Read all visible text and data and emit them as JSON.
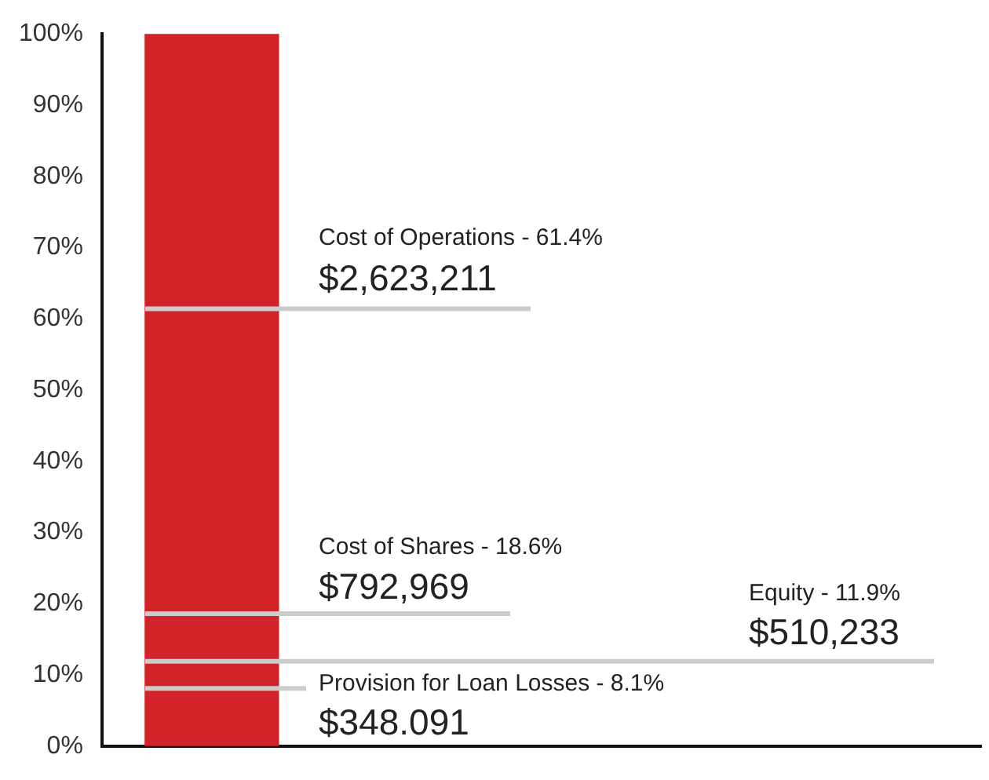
{
  "chart_data": {
    "type": "bar",
    "categories": [
      null
    ],
    "values": [
      100
    ],
    "color": "#d2232a",
    "ylim": [
      0,
      100
    ],
    "yticks": [
      {
        "value": 0,
        "label": "0%"
      },
      {
        "value": 10,
        "label": "10%"
      },
      {
        "value": 20,
        "label": "20%"
      },
      {
        "value": 30,
        "label": "30%"
      },
      {
        "value": 40,
        "label": "40%"
      },
      {
        "value": 50,
        "label": "50%"
      },
      {
        "value": 60,
        "label": "60%"
      },
      {
        "value": 70,
        "label": "70%"
      },
      {
        "value": 80,
        "label": "80%"
      },
      {
        "value": 90,
        "label": "90%"
      },
      {
        "value": 100,
        "label": "100%"
      }
    ],
    "grid": false,
    "legend": false,
    "tick_labels": "y",
    "ref_lines": [
      {
        "axis": "y",
        "value": 61.4,
        "label": "Cost of Operations - 61.4%",
        "color": "#cccccc"
      },
      {
        "axis": "y",
        "value": 18.6,
        "label": "Cost of Shares - 18.6%",
        "color": "#cccccc"
      },
      {
        "axis": "y",
        "value": 11.9,
        "label": "Equity - 11.9%",
        "color": "#cccccc"
      },
      {
        "axis": "y",
        "value": 8.1,
        "label": "Provision for Loan Losses - 8.1%",
        "color": "#cccccc"
      }
    ],
    "annotations": [
      "$2,623,211",
      "$792,969",
      "$510,233",
      "$348.091"
    ]
  }
}
